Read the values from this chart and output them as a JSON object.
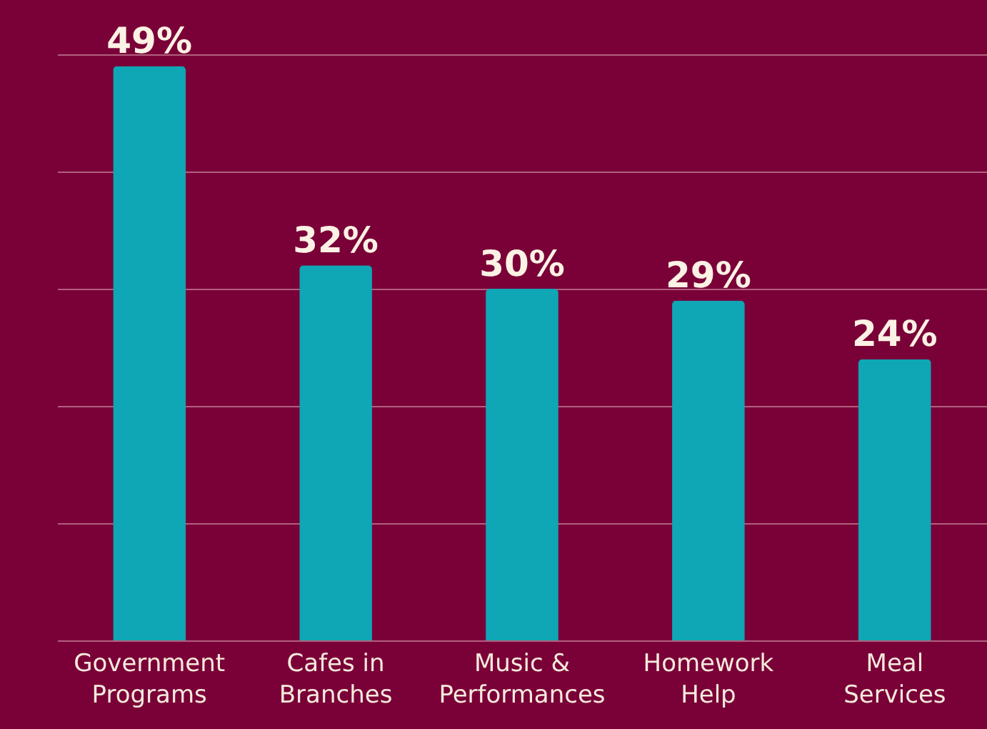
{
  "chart_data": {
    "type": "bar",
    "categories": [
      "Government\nPrograms",
      "Cafes in\nBranches",
      "Music &\nPerformances",
      "Homework\nHelp",
      "Meal\nServices"
    ],
    "values": [
      49,
      32,
      30,
      29,
      24
    ],
    "value_labels": [
      "49%",
      "32%",
      "30%",
      "29%",
      "24%"
    ],
    "color": "#0fa6b6",
    "ylim": [
      0,
      50
    ],
    "yticks": [
      {
        "value": 0,
        "label": null
      },
      {
        "value": 10,
        "label": null
      },
      {
        "value": 20,
        "label": null
      },
      {
        "value": 30,
        "label": null
      },
      {
        "value": 40,
        "label": null
      },
      {
        "value": 50,
        "label": null
      }
    ],
    "grid": "y",
    "tick_labels": "x"
  }
}
